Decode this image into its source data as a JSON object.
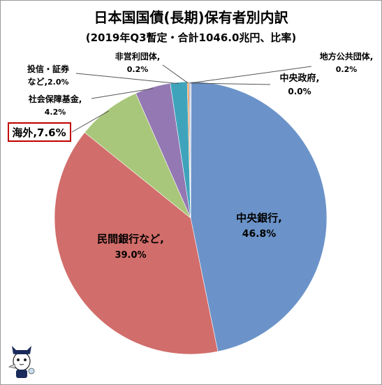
{
  "chart_data": {
    "type": "pie",
    "title": "日本国国債(長期)保有者別内訳",
    "subtitle": "(2019年Q3暫定・合計1046.0兆円、比率)",
    "slices": [
      {
        "name": "中央銀行,",
        "value_label": "46.8%",
        "value": 46.8,
        "color": "#6b93c9"
      },
      {
        "name": "民間銀行など,",
        "value_label": "39.0%",
        "value": 39.0,
        "color": "#d16d6a"
      },
      {
        "name": "海外,",
        "value_label": "7.6%",
        "value": 7.6,
        "color": "#a9c77a"
      },
      {
        "name": "社会保障基金,",
        "value_label": "4.2%",
        "value": 4.2,
        "color": "#9478b3"
      },
      {
        "name": "投信・証券など,",
        "value_label": "2.0%",
        "value": 2.0,
        "color": "#3fa4bb"
      },
      {
        "name": "非営利団体,",
        "value_label": "0.2%",
        "value": 0.2,
        "color": "#f0913f"
      },
      {
        "name": "地方公共団体,",
        "value_label": "0.2%",
        "value": 0.2,
        "color": "#a6b9dc"
      },
      {
        "name": "中央政府,",
        "value_label": "0.0%",
        "value": 0.0,
        "color": "#e8a8a6"
      }
    ],
    "highlight": "海外",
    "legend": "none"
  }
}
